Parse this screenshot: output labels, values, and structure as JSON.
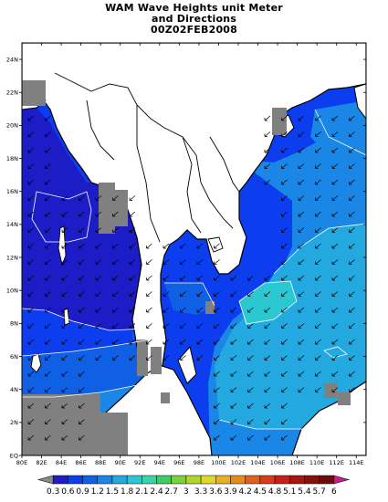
{
  "title": {
    "line1": "WAM Wave Heights unit Meter",
    "line2": "and Directions",
    "line3": "00Z02FEB2008"
  },
  "map": {
    "lon_range": [
      80,
      115
    ],
    "lat_range": [
      0,
      25
    ],
    "lon_ticks": [
      "80E",
      "82E",
      "84E",
      "86E",
      "88E",
      "90E",
      "92E",
      "94E",
      "96E",
      "98E",
      "100E",
      "102E",
      "104E",
      "106E",
      "108E",
      "110E",
      "112E",
      "114E"
    ],
    "lat_ticks": [
      "EQ",
      "2N",
      "4N",
      "6N",
      "8N",
      "10N",
      "12N",
      "14N",
      "16N",
      "18N",
      "20N",
      "22N",
      "24N"
    ],
    "land_color": "#ffffff",
    "masked_color": "#808080",
    "coast_color": "#000000"
  },
  "colorbar": {
    "labels": [
      "0.3",
      "0.6",
      "0.9",
      "1.2",
      "1.5",
      "1.8",
      "2.1",
      "2.4",
      "2.7",
      "3",
      "3.3",
      "3.6",
      "3.9",
      "4.2",
      "4.5",
      "4.8",
      "5.1",
      "5.4",
      "5.7",
      "6"
    ],
    "colors": [
      "#1d1dc8",
      "#0c3ef0",
      "#1060e6",
      "#1a86e6",
      "#23a8e0",
      "#2bc8d2",
      "#3ad2a6",
      "#3ecd62",
      "#79d23c",
      "#b3d428",
      "#e0d822",
      "#e6b020",
      "#e68a18",
      "#e2601a",
      "#d83c18",
      "#c81e14",
      "#a8140f",
      "#88100c",
      "#6a0c0a",
      "#c81e8c"
    ]
  }
}
